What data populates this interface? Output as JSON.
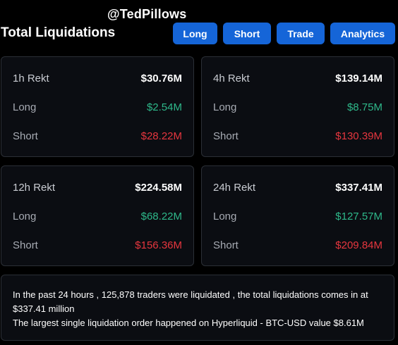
{
  "watermark": "@TedPillows",
  "title": "Total Liquidations",
  "buttons": {
    "long": "Long",
    "short": "Short",
    "trade": "Trade",
    "analytics": "Analytics"
  },
  "colors": {
    "accent": "#1565d8",
    "long": "#2eb88a",
    "short": "#e5363e",
    "card_bg": "#0b0d12",
    "border": "#2b2f36"
  },
  "cards": [
    {
      "label": "1h Rekt",
      "total": "$30.76M",
      "long_label": "Long",
      "long": "$2.54M",
      "short_label": "Short",
      "short": "$28.22M"
    },
    {
      "label": "4h Rekt",
      "total": "$139.14M",
      "long_label": "Long",
      "long": "$8.75M",
      "short_label": "Short",
      "short": "$130.39M"
    },
    {
      "label": "12h Rekt",
      "total": "$224.58M",
      "long_label": "Long",
      "long": "$68.22M",
      "short_label": "Short",
      "short": "$156.36M"
    },
    {
      "label": "24h Rekt",
      "total": "$337.41M",
      "long_label": "Long",
      "long": "$127.57M",
      "short_label": "Short",
      "short": "$209.84M"
    }
  ],
  "summary": {
    "line1": "In the past 24 hours , 125,878 traders were liquidated , the total liquidations comes in at $337.41 million",
    "line2": "The largest single liquidation order happened on Hyperliquid - BTC-USD value $8.61M"
  }
}
